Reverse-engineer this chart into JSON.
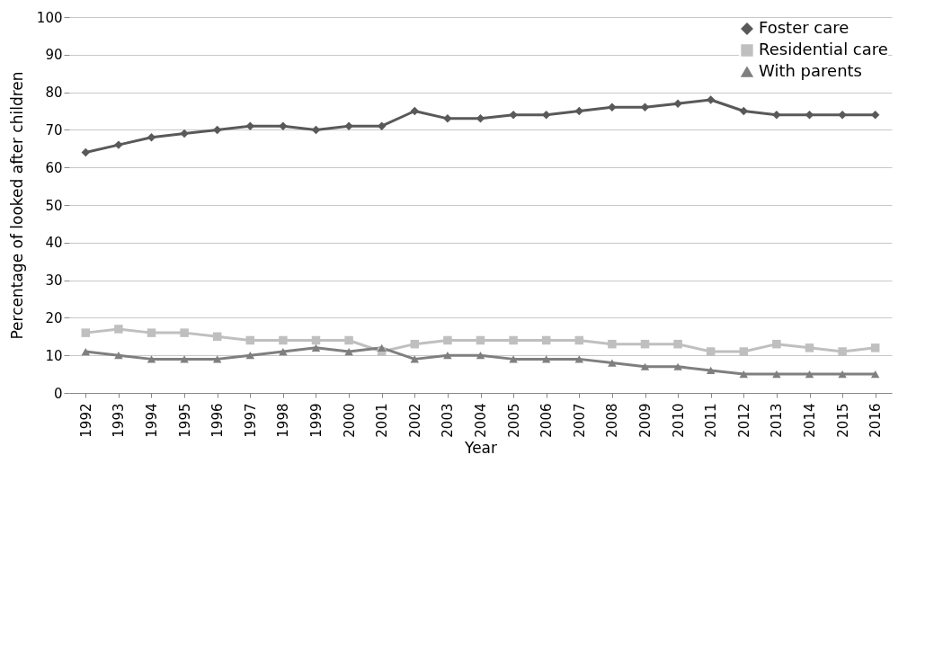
{
  "chart_data": {
    "type": "line",
    "xlabel": "Year",
    "ylabel": "Percentage of looked after children",
    "categories": [
      "1992",
      "1993",
      "1994",
      "1995",
      "1996",
      "1997",
      "1998",
      "1999",
      "2000",
      "2001",
      "2002",
      "2003",
      "2004",
      "2005",
      "2006",
      "2007",
      "2008",
      "2009",
      "2010",
      "2011",
      "2012",
      "2013",
      "2014",
      "2015",
      "2016"
    ],
    "series": [
      {
        "name": "Foster care",
        "color": "#595959",
        "marker": "diamond",
        "values": [
          64,
          66,
          68,
          69,
          70,
          71,
          71,
          70,
          71,
          71,
          75,
          73,
          73,
          74,
          74,
          75,
          76,
          76,
          77,
          78,
          75,
          74,
          74,
          74,
          74
        ]
      },
      {
        "name": "Residential care",
        "color": "#bfbfbf",
        "marker": "square",
        "values": [
          16,
          17,
          16,
          16,
          15,
          14,
          14,
          14,
          14,
          11,
          13,
          14,
          14,
          14,
          14,
          14,
          13,
          13,
          13,
          11,
          11,
          13,
          12,
          11,
          12
        ]
      },
      {
        "name": "With parents",
        "color": "#7f7f7f",
        "marker": "triangle",
        "values": [
          11,
          10,
          9,
          9,
          9,
          10,
          11,
          12,
          11,
          12,
          9,
          10,
          10,
          9,
          9,
          9,
          8,
          7,
          7,
          6,
          5,
          5,
          5,
          5,
          5
        ]
      }
    ],
    "ylim": [
      0,
      100
    ],
    "yticks": [
      0,
      10,
      20,
      30,
      40,
      50,
      60,
      70,
      80,
      90,
      100
    ],
    "grid": "y",
    "legend": "top right"
  }
}
